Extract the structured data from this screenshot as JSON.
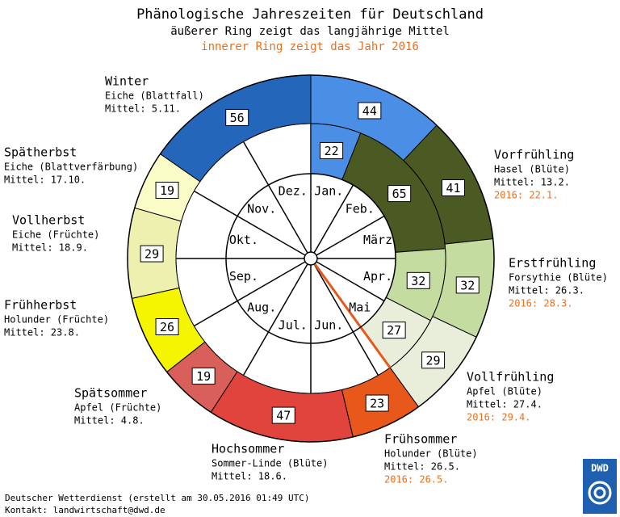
{
  "chart_data": {
    "type": "phenology_clock",
    "title": "Phänologische Jahreszeiten für Deutschland",
    "subtitle": "äußerer Ring zeigt das langjährige Mittel",
    "subtitle_year": "innerer Ring zeigt das Jahr 2016",
    "months": [
      "Jan.",
      "Feb.",
      "März",
      "Apr.",
      "Mai",
      "Jun.",
      "Jul.",
      "Aug.",
      "Sep.",
      "Okt.",
      "Nov.",
      "Dez."
    ],
    "outer_ring": {
      "values": [
        44,
        41,
        32,
        29,
        23,
        47,
        19,
        26,
        29,
        19,
        56
      ],
      "colors": [
        "#4a8ee6",
        "#4a5a22",
        "#c5dca0",
        "#e9eedb",
        "#e8581a",
        "#e0443c",
        "#d9605a",
        "#f5f500",
        "#eef0b0",
        "#fafcc8",
        "#2466ba"
      ]
    },
    "inner_ring": {
      "values": [
        22,
        65,
        32,
        27
      ],
      "colors": [
        "#4a8ee6",
        "#4a5a22",
        "#c5dca0",
        "#e9eedb"
      ],
      "marker_color": "#e8581a"
    },
    "seasons": [
      {
        "name": "Winter",
        "plant": "Eiche (Blattfall)",
        "mean": "Mittel: 5.11."
      },
      {
        "name": "Spätherbst",
        "plant": "Eiche (Blattverfärbung)",
        "mean": "Mittel: 17.10."
      },
      {
        "name": "Vollherbst",
        "plant": "Eiche (Früchte)",
        "mean": "Mittel: 18.9."
      },
      {
        "name": "Frühherbst",
        "plant": "Holunder (Früchte)",
        "mean": "Mittel: 23.8."
      },
      {
        "name": "Spätsommer",
        "plant": "Apfel (Früchte)",
        "mean": "Mittel: 4.8."
      },
      {
        "name": "Hochsommer",
        "plant": "Sommer-Linde (Blüte)",
        "mean": "Mittel: 18.6."
      },
      {
        "name": "Frühsommer",
        "plant": "Holunder (Blüte)",
        "mean": "Mittel: 26.5.",
        "year": "2016: 26.5."
      },
      {
        "name": "Vollfrühling",
        "plant": "Apfel (Blüte)",
        "mean": "Mittel: 27.4.",
        "year": "2016: 29.4."
      },
      {
        "name": "Erstfrühling",
        "plant": "Forsythie (Blüte)",
        "mean": "Mittel: 26.3.",
        "year": "2016: 28.3."
      },
      {
        "name": "Vorfrühling",
        "plant": "Hasel (Blüte)",
        "mean": "Mittel: 13.2.",
        "year": "2016: 22.1."
      }
    ],
    "footer": "Deutscher Wetterdienst (erstellt am 30.05.2016 01:49 UTC)",
    "contact": "Kontakt: landwirtschaft@dwd.de",
    "logo": "DWD"
  }
}
